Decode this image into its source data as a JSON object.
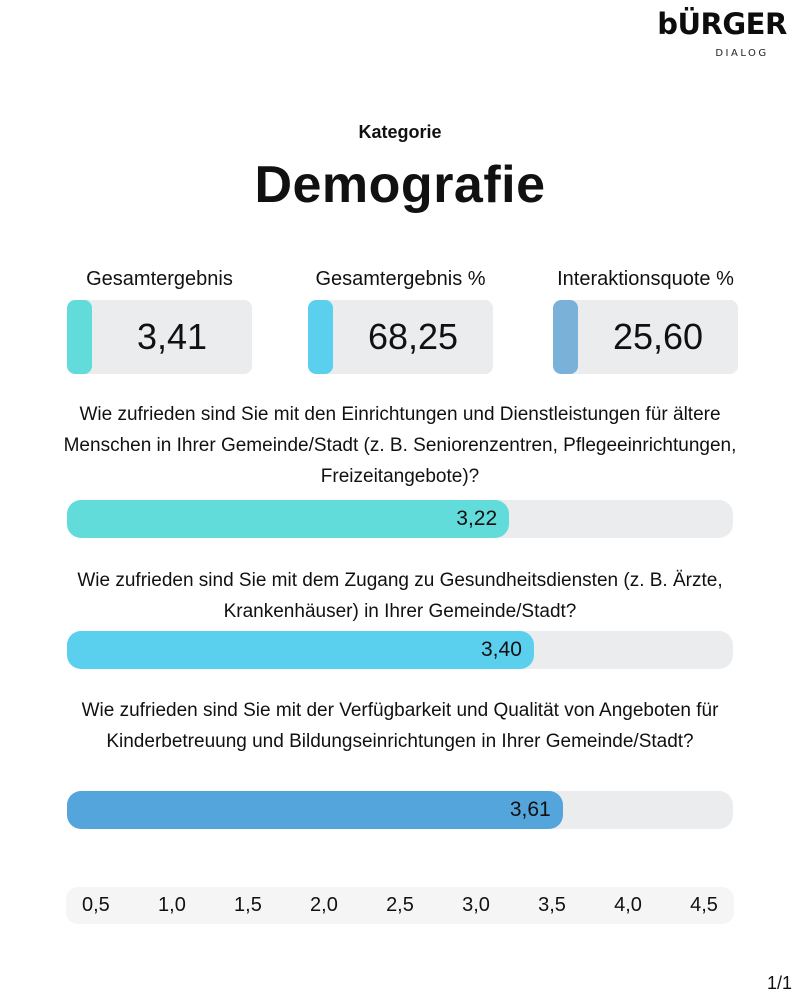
{
  "logo": {
    "main": "bÜRGER",
    "sub": "DIALOG"
  },
  "header": {
    "kategorie_label": "Kategorie",
    "title": "Demografie"
  },
  "kpis": [
    {
      "label": "Gesamtergebnis",
      "value": "3,41",
      "color": "#62dcdb"
    },
    {
      "label": "Gesamtergebnis %",
      "value": "68,25",
      "color": "#5bcfee"
    },
    {
      "label": "Interaktionsquote %",
      "value": "25,60",
      "color": "#79b1d8"
    }
  ],
  "chart_data": {
    "type": "bar",
    "orientation": "horizontal",
    "categories": [
      "Wie zufrieden sind Sie mit den Einrichtungen und Dienstleistungen für ältere Menschen in Ihrer Gemeinde/Stadt (z. B. Seniorenzentren, Pflegeeinrichtungen, Freizeitangebote)?",
      "Wie zufrieden sind Sie mit dem Zugang zu Gesundheitsdiensten (z. B. Ärzte, Krankenhäuser) in Ihrer Gemeinde/Stadt?",
      "Wie zufrieden sind Sie mit der Verfügbarkeit und Qualität von Angeboten für Kinderbetreuung und Bildungseinrichtungen in Ihrer Gemeinde/Stadt?"
    ],
    "values": [
      3.22,
      3.4,
      3.61
    ],
    "value_labels": [
      "3,22",
      "3,40",
      "3,61"
    ],
    "colors": [
      "#62dcdb",
      "#5bcfee",
      "#54a5db"
    ],
    "xlim": [
      0,
      4.85
    ],
    "scale_ticks": [
      "0,5",
      "1,0",
      "1,5",
      "2,0",
      "2,5",
      "3,0",
      "3,5",
      "4,0",
      "4,5"
    ]
  },
  "footer": {
    "page": "1/1"
  }
}
